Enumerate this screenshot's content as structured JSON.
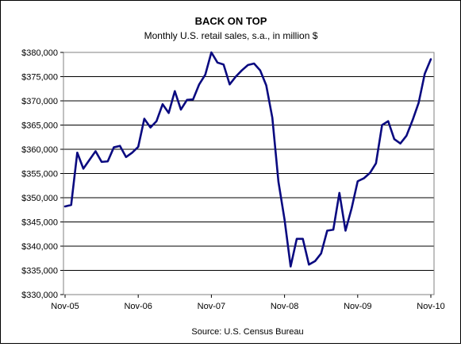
{
  "chart_data": {
    "type": "line",
    "title": "BACK ON TOP",
    "subtitle": "Monthly U.S. retail sales, s.a., in million $",
    "source": "Source: U.S. Census Bureau",
    "xlabel": "",
    "ylabel": "",
    "ylim": [
      330000,
      380000
    ],
    "y_ticks": [
      330000,
      335000,
      340000,
      345000,
      350000,
      355000,
      360000,
      365000,
      370000,
      375000,
      380000
    ],
    "y_tick_labels": [
      "$330,000",
      "$335,000",
      "$340,000",
      "$345,000",
      "$350,000",
      "$355,000",
      "$360,000",
      "$365,000",
      "$370,000",
      "$375,000",
      "$380,000"
    ],
    "x_tick_labels": [
      "Nov-05",
      "Nov-06",
      "Nov-07",
      "Nov-08",
      "Nov-09",
      "Nov-10"
    ],
    "grid": "horizontal",
    "legend": "none",
    "line_color": "#0a0a80",
    "x": [
      "Nov-05",
      "Dec-05",
      "Jan-06",
      "Feb-06",
      "Mar-06",
      "Apr-06",
      "May-06",
      "Jun-06",
      "Jul-06",
      "Aug-06",
      "Sep-06",
      "Oct-06",
      "Nov-06",
      "Dec-06",
      "Jan-07",
      "Feb-07",
      "Mar-07",
      "Apr-07",
      "May-07",
      "Jun-07",
      "Jul-07",
      "Aug-07",
      "Sep-07",
      "Oct-07",
      "Nov-07",
      "Dec-07",
      "Jan-08",
      "Feb-08",
      "Mar-08",
      "Apr-08",
      "May-08",
      "Jun-08",
      "Jul-08",
      "Aug-08",
      "Sep-08",
      "Oct-08",
      "Nov-08",
      "Dec-08",
      "Jan-09",
      "Feb-09",
      "Mar-09",
      "Apr-09",
      "May-09",
      "Jun-09",
      "Jul-09",
      "Aug-09",
      "Sep-09",
      "Oct-09",
      "Nov-09",
      "Dec-09",
      "Jan-10",
      "Feb-10",
      "Mar-10",
      "Apr-10",
      "May-10",
      "Jun-10",
      "Jul-10",
      "Aug-10",
      "Sep-10",
      "Oct-10",
      "Nov-10"
    ],
    "series": [
      {
        "values": [
          348200,
          348500,
          359300,
          356000,
          357800,
          359600,
          357400,
          357500,
          360400,
          360700,
          358400,
          359300,
          360500,
          366300,
          364500,
          365800,
          369300,
          367500,
          372000,
          368200,
          370200,
          370300,
          373400,
          375400,
          380000,
          377900,
          377500,
          373400,
          375000,
          376300,
          377400,
          377700,
          376300,
          373200,
          366500,
          353300,
          345500,
          335800,
          341500,
          341500,
          336200,
          336900,
          338500,
          343200,
          343400,
          351000,
          343200,
          347800,
          353400,
          354000,
          355100,
          357100,
          365000,
          365800,
          362100,
          361200,
          362800,
          366000,
          369600,
          375600,
          378600
        ]
      }
    ]
  }
}
